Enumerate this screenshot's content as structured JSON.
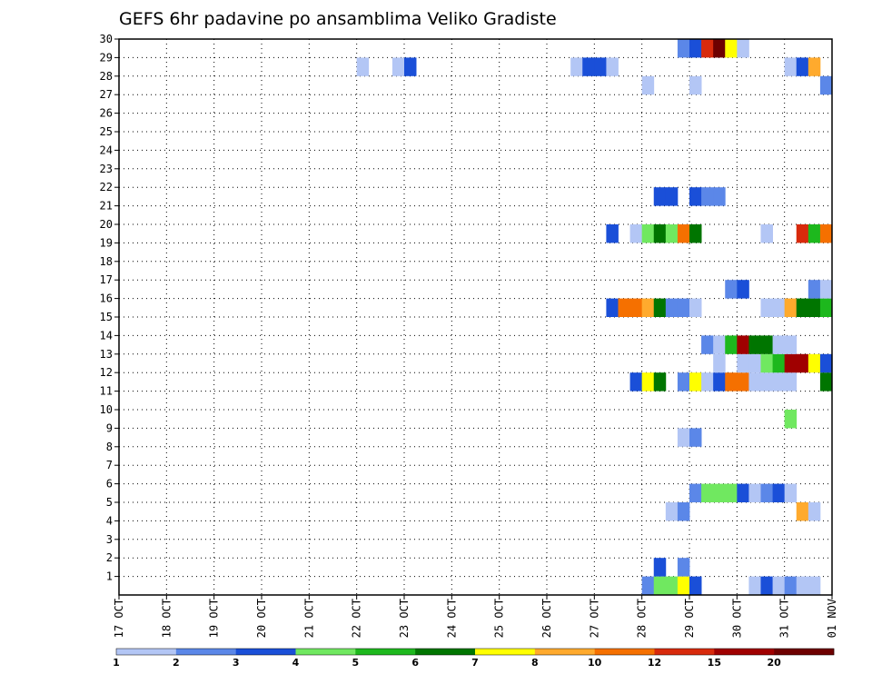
{
  "chart_data": {
    "type": "heatmap",
    "title": "GEFS 6hr padavine po ansamblima Veliko Gradiste",
    "x_tick_labels": [
      "17 OCT",
      "18 OCT",
      "19 OCT",
      "20 OCT",
      "21 OCT",
      "22 OCT",
      "23 OCT",
      "24 OCT",
      "25 OCT",
      "26 OCT",
      "27 OCT",
      "28 OCT",
      "29 OCT",
      "30 OCT",
      "31 OCT",
      "01 NOV"
    ],
    "x_start_day": 17,
    "x_range_days": [
      0,
      15
    ],
    "y_tick_labels": [
      "1",
      "2",
      "3",
      "4",
      "5",
      "6",
      "7",
      "8",
      "9",
      "10",
      "11",
      "12",
      "13",
      "14",
      "15",
      "16",
      "17",
      "18",
      "19",
      "20",
      "21",
      "22",
      "23",
      "24",
      "25",
      "26",
      "27",
      "28",
      "29",
      "30"
    ],
    "y_range": [
      0,
      30
    ],
    "step_hours": 6,
    "grid": true,
    "colorbar": {
      "labels": [
        "1",
        "2",
        "3",
        "4",
        "5",
        "6",
        "7",
        "8",
        "10",
        "12",
        "15",
        "20"
      ],
      "colors": [
        "#b3c6f5",
        "#5b87e8",
        "#1a4fd8",
        "#70e860",
        "#1db81d",
        "#007500",
        "#ffff00",
        "#ffaa2d",
        "#f57000",
        "#d82a0c",
        "#a00000",
        "#6e0000"
      ]
    },
    "cell_levels": [
      "1",
      "2",
      "3",
      "4",
      "5",
      "6",
      "7",
      "8",
      "10",
      "12",
      "15",
      "20"
    ],
    "cells": [
      {
        "member": 0,
        "day": 28.0,
        "level": "2"
      },
      {
        "member": 0,
        "day": 28.25,
        "level": "4"
      },
      {
        "member": 0,
        "day": 28.5,
        "level": "4"
      },
      {
        "member": 0,
        "day": 28.75,
        "level": "7"
      },
      {
        "member": 0,
        "day": 29.0,
        "level": "3"
      },
      {
        "member": 0,
        "day": 30.25,
        "level": "1"
      },
      {
        "member": 0,
        "day": 30.5,
        "level": "3"
      },
      {
        "member": 0,
        "day": 30.75,
        "level": "1"
      },
      {
        "member": 0,
        "day": 31.0,
        "level": "2"
      },
      {
        "member": 0,
        "day": 31.25,
        "level": "1"
      },
      {
        "member": 0,
        "day": 31.5,
        "level": "1"
      },
      {
        "member": 1,
        "day": 28.25,
        "level": "3"
      },
      {
        "member": 1,
        "day": 28.75,
        "level": "2"
      },
      {
        "member": 4,
        "day": 28.5,
        "level": "1"
      },
      {
        "member": 4,
        "day": 28.75,
        "level": "2"
      },
      {
        "member": 4,
        "day": 31.25,
        "level": "8"
      },
      {
        "member": 4,
        "day": 31.5,
        "level": "1"
      },
      {
        "member": 5,
        "day": 29.0,
        "level": "2"
      },
      {
        "member": 5,
        "day": 29.25,
        "level": "4"
      },
      {
        "member": 5,
        "day": 29.5,
        "level": "4"
      },
      {
        "member": 5,
        "day": 29.75,
        "level": "4"
      },
      {
        "member": 5,
        "day": 30.0,
        "level": "3"
      },
      {
        "member": 5,
        "day": 30.25,
        "level": "1"
      },
      {
        "member": 5,
        "day": 30.5,
        "level": "2"
      },
      {
        "member": 5,
        "day": 30.75,
        "level": "3"
      },
      {
        "member": 5,
        "day": 31.0,
        "level": "1"
      },
      {
        "member": 8,
        "day": 28.75,
        "level": "1"
      },
      {
        "member": 8,
        "day": 29.0,
        "level": "2"
      },
      {
        "member": 9,
        "day": 31.0,
        "level": "4"
      },
      {
        "member": 11,
        "day": 27.75,
        "level": "3"
      },
      {
        "member": 11,
        "day": 28.0,
        "level": "7"
      },
      {
        "member": 11,
        "day": 28.25,
        "level": "6"
      },
      {
        "member": 11,
        "day": 28.75,
        "level": "2"
      },
      {
        "member": 11,
        "day": 29.0,
        "level": "7"
      },
      {
        "member": 11,
        "day": 29.25,
        "level": "1"
      },
      {
        "member": 11,
        "day": 29.5,
        "level": "3"
      },
      {
        "member": 11,
        "day": 29.75,
        "level": "10"
      },
      {
        "member": 11,
        "day": 30.0,
        "level": "10"
      },
      {
        "member": 11,
        "day": 30.25,
        "level": "1"
      },
      {
        "member": 11,
        "day": 30.5,
        "level": "1"
      },
      {
        "member": 11,
        "day": 30.75,
        "level": "1"
      },
      {
        "member": 11,
        "day": 31.0,
        "level": "1"
      },
      {
        "member": 11,
        "day": 31.75,
        "level": "6"
      },
      {
        "member": 12,
        "day": 29.5,
        "level": "1"
      },
      {
        "member": 12,
        "day": 30.0,
        "level": "1"
      },
      {
        "member": 12,
        "day": 30.25,
        "level": "1"
      },
      {
        "member": 12,
        "day": 30.5,
        "level": "4"
      },
      {
        "member": 12,
        "day": 30.75,
        "level": "5"
      },
      {
        "member": 12,
        "day": 31.0,
        "level": "15"
      },
      {
        "member": 12,
        "day": 31.25,
        "level": "15"
      },
      {
        "member": 12,
        "day": 31.5,
        "level": "7"
      },
      {
        "member": 12,
        "day": 31.75,
        "level": "3"
      },
      {
        "member": 13,
        "day": 29.25,
        "level": "2"
      },
      {
        "member": 13,
        "day": 29.5,
        "level": "1"
      },
      {
        "member": 13,
        "day": 29.75,
        "level": "5"
      },
      {
        "member": 13,
        "day": 30.0,
        "level": "15"
      },
      {
        "member": 13,
        "day": 30.25,
        "level": "6"
      },
      {
        "member": 13,
        "day": 30.5,
        "level": "6"
      },
      {
        "member": 13,
        "day": 30.75,
        "level": "1"
      },
      {
        "member": 13,
        "day": 31.0,
        "level": "1"
      },
      {
        "member": 15,
        "day": 27.25,
        "level": "3"
      },
      {
        "member": 15,
        "day": 27.5,
        "level": "10"
      },
      {
        "member": 15,
        "day": 27.75,
        "level": "10"
      },
      {
        "member": 15,
        "day": 28.0,
        "level": "8"
      },
      {
        "member": 15,
        "day": 28.25,
        "level": "6"
      },
      {
        "member": 15,
        "day": 28.5,
        "level": "2"
      },
      {
        "member": 15,
        "day": 28.75,
        "level": "2"
      },
      {
        "member": 15,
        "day": 29.0,
        "level": "1"
      },
      {
        "member": 15,
        "day": 30.5,
        "level": "1"
      },
      {
        "member": 15,
        "day": 30.75,
        "level": "1"
      },
      {
        "member": 15,
        "day": 31.0,
        "level": "8"
      },
      {
        "member": 15,
        "day": 31.25,
        "level": "6"
      },
      {
        "member": 15,
        "day": 31.5,
        "level": "6"
      },
      {
        "member": 15,
        "day": 31.75,
        "level": "5"
      },
      {
        "member": 16,
        "day": 29.75,
        "level": "2"
      },
      {
        "member": 16,
        "day": 30.0,
        "level": "3"
      },
      {
        "member": 16,
        "day": 31.5,
        "level": "2"
      },
      {
        "member": 16,
        "day": 31.75,
        "level": "1"
      },
      {
        "member": 19,
        "day": 27.25,
        "level": "3"
      },
      {
        "member": 19,
        "day": 27.75,
        "level": "1"
      },
      {
        "member": 19,
        "day": 28.0,
        "level": "4"
      },
      {
        "member": 19,
        "day": 28.25,
        "level": "6"
      },
      {
        "member": 19,
        "day": 28.5,
        "level": "4"
      },
      {
        "member": 19,
        "day": 28.75,
        "level": "10"
      },
      {
        "member": 19,
        "day": 29.0,
        "level": "6"
      },
      {
        "member": 19,
        "day": 30.5,
        "level": "1"
      },
      {
        "member": 19,
        "day": 31.25,
        "level": "12"
      },
      {
        "member": 19,
        "day": 31.5,
        "level": "5"
      },
      {
        "member": 19,
        "day": 31.75,
        "level": "10"
      },
      {
        "member": 21,
        "day": 28.25,
        "level": "3"
      },
      {
        "member": 21,
        "day": 28.5,
        "level": "3"
      },
      {
        "member": 21,
        "day": 29.0,
        "level": "3"
      },
      {
        "member": 21,
        "day": 29.25,
        "level": "2"
      },
      {
        "member": 21,
        "day": 29.5,
        "level": "2"
      },
      {
        "member": 27,
        "day": 28.0,
        "level": "1"
      },
      {
        "member": 27,
        "day": 29.0,
        "level": "1"
      },
      {
        "member": 27,
        "day": 31.75,
        "level": "2"
      },
      {
        "member": 28,
        "day": 22.0,
        "level": "1"
      },
      {
        "member": 28,
        "day": 22.75,
        "level": "1"
      },
      {
        "member": 28,
        "day": 23.0,
        "level": "3"
      },
      {
        "member": 28,
        "day": 26.5,
        "level": "1"
      },
      {
        "member": 28,
        "day": 26.75,
        "level": "3"
      },
      {
        "member": 28,
        "day": 27.0,
        "level": "3"
      },
      {
        "member": 28,
        "day": 27.25,
        "level": "1"
      },
      {
        "member": 28,
        "day": 31.0,
        "level": "1"
      },
      {
        "member": 28,
        "day": 31.25,
        "level": "3"
      },
      {
        "member": 28,
        "day": 31.5,
        "level": "8"
      },
      {
        "member": 29,
        "day": 28.75,
        "level": "2"
      },
      {
        "member": 29,
        "day": 29.0,
        "level": "3"
      },
      {
        "member": 29,
        "day": 29.25,
        "level": "12"
      },
      {
        "member": 29,
        "day": 29.5,
        "level": "20"
      },
      {
        "member": 29,
        "day": 29.75,
        "level": "7"
      },
      {
        "member": 29,
        "day": 30.0,
        "level": "1"
      }
    ]
  }
}
